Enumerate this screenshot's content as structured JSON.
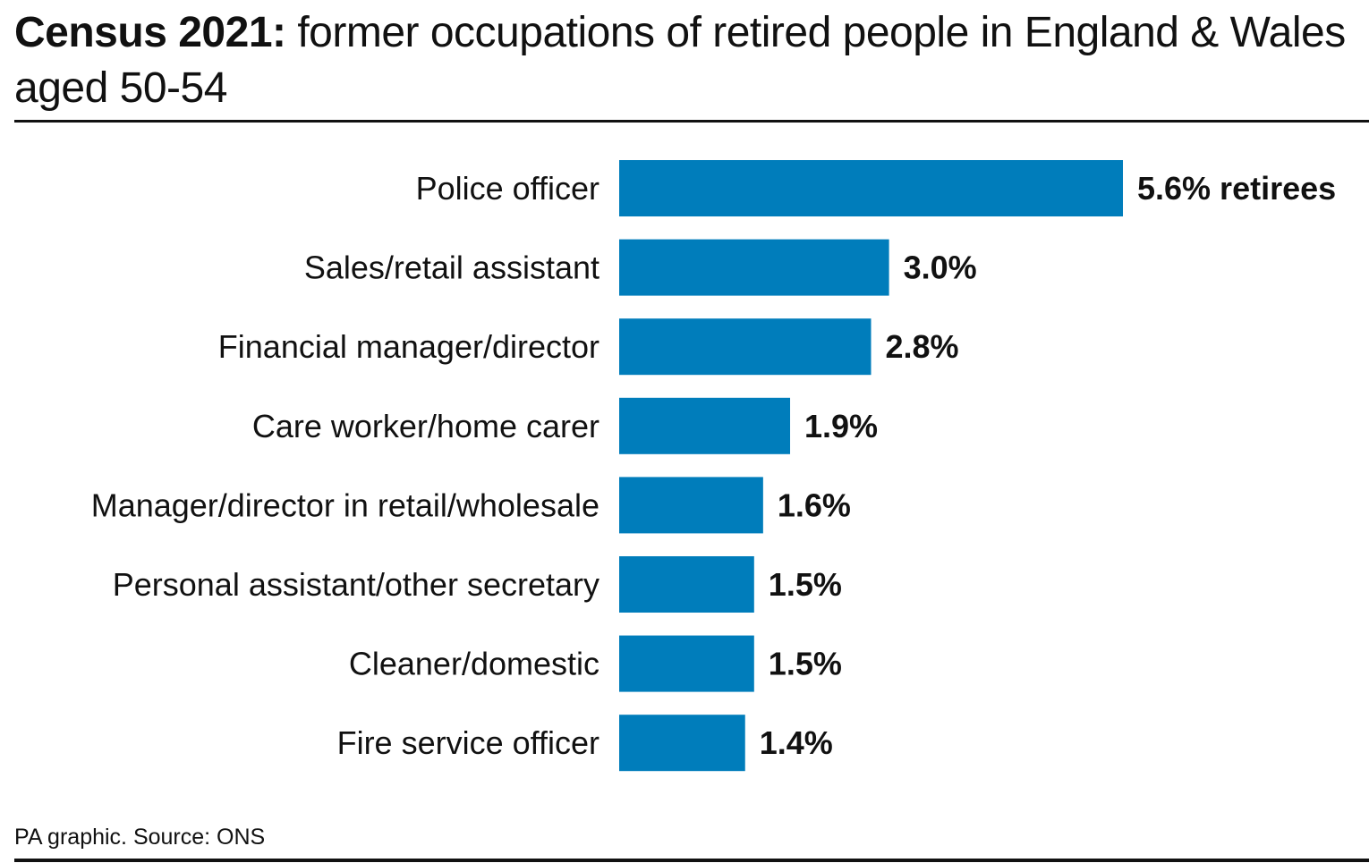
{
  "header": {
    "title_bold": "Census 2021:",
    "title_rest": "former occupations of retired people in England & Wales aged 50-54"
  },
  "footer": {
    "source": "PA graphic. Source: ONS"
  },
  "colors": {
    "bar": "#007dbb",
    "text": "#111111",
    "background": "#ffffff"
  },
  "chart_data": {
    "type": "bar",
    "orientation": "horizontal",
    "title": "Census 2021: former occupations of retired people in England & Wales aged 50-54",
    "categories": [
      "Police officer",
      "Sales/retail assistant",
      "Financial manager/director",
      "Care worker/home carer",
      "Manager/director in retail/wholesale",
      "Personal assistant/other secretary",
      "Cleaner/domestic",
      "Fire service officer"
    ],
    "values": [
      5.6,
      3.0,
      2.8,
      1.9,
      1.6,
      1.5,
      1.5,
      1.4
    ],
    "value_labels": [
      "5.6% retirees",
      "3.0%",
      "2.8%",
      "1.9%",
      "1.6%",
      "1.5%",
      "1.5%",
      "1.4%"
    ],
    "unit": "%",
    "xlim": [
      0,
      5.6
    ],
    "grid": false,
    "legend": "none"
  }
}
